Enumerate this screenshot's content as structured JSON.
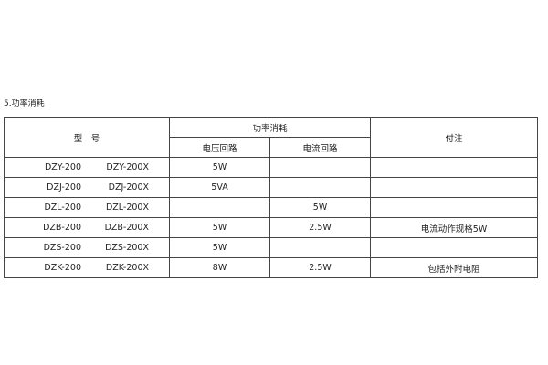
{
  "title": "5.功率消耗",
  "headers": {
    "model": "型　号",
    "power": "功率消耗",
    "voltage": "电压回路",
    "current": "电流回路",
    "note": "付注"
  },
  "rows": [
    {
      "model_a": "DZY-200",
      "model_b": "DZY-200X",
      "voltage": "5W",
      "current": "",
      "note": ""
    },
    {
      "model_a": "DZJ-200",
      "model_b": "DZJ-200X",
      "voltage": "5VA",
      "current": "",
      "note": ""
    },
    {
      "model_a": "DZL-200",
      "model_b": "DZL-200X",
      "voltage": "",
      "current": "5W",
      "note": ""
    },
    {
      "model_a": "DZB-200",
      "model_b": "DZB-200X",
      "voltage": "5W",
      "current": "2.5W",
      "note": "电流动作规格5W"
    },
    {
      "model_a": "DZS-200",
      "model_b": "DZS-200X",
      "voltage": "5W",
      "current": "",
      "note": ""
    },
    {
      "model_a": "DZK-200",
      "model_b": "DZK-200X",
      "voltage": "8W",
      "current": "2.5W",
      "note": "包括外附电阻"
    }
  ]
}
